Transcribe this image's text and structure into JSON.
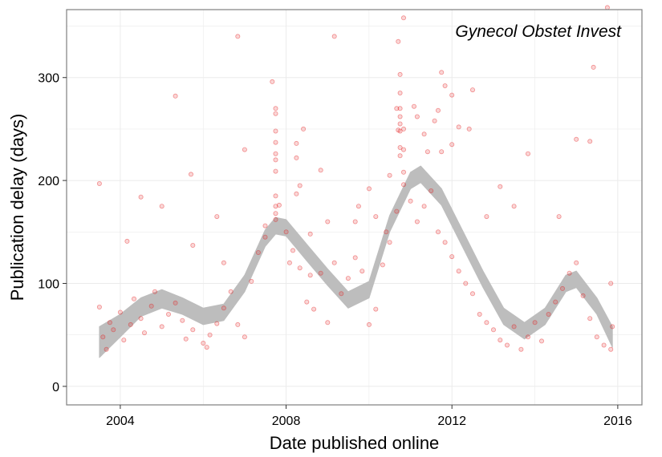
{
  "chart_data": {
    "type": "scatter",
    "title": "",
    "annotation": "Gynecol Obstet Invest",
    "xlabel": "Date published online",
    "ylabel": "Publication delay (days)",
    "x_type": "date",
    "xlim": [
      "2002-09-15",
      "2016-08-01"
    ],
    "ylim": [
      -18,
      366
    ],
    "x_ticks": [
      {
        "value": "2004-01-01",
        "label": "2004"
      },
      {
        "value": "2008-01-01",
        "label": "2008"
      },
      {
        "value": "2012-01-01",
        "label": "2012"
      },
      {
        "value": "2016-01-01",
        "label": "2016"
      }
    ],
    "y_ticks": [
      {
        "value": 0,
        "label": "0"
      },
      {
        "value": 100,
        "label": "100"
      },
      {
        "value": 200,
        "label": "200"
      },
      {
        "value": 300,
        "label": "300"
      }
    ],
    "grid": true,
    "colors": {
      "points": "#e41a1c",
      "smooth_band": "#bdbdbd",
      "grid": "#ebebeb",
      "panel_border": "#7f7f7f"
    },
    "points": [
      {
        "x": "2003-07-01",
        "y": 197
      },
      {
        "x": "2004-03-01",
        "y": 141
      },
      {
        "x": "2004-07-01",
        "y": 184
      },
      {
        "x": "2005-01-01",
        "y": 175
      },
      {
        "x": "2005-05-01",
        "y": 282
      },
      {
        "x": "2005-09-15",
        "y": 206
      },
      {
        "x": "2005-10-01",
        "y": 137
      },
      {
        "x": "2006-05-01",
        "y": 165
      },
      {
        "x": "2006-07-01",
        "y": 120
      },
      {
        "x": "2006-11-01",
        "y": 340
      },
      {
        "x": "2007-01-01",
        "y": 230
      },
      {
        "x": "2007-07-01",
        "y": 156
      },
      {
        "x": "2007-09-01",
        "y": 296
      },
      {
        "x": "2007-10-01",
        "y": 270
      },
      {
        "x": "2007-10-01",
        "y": 265
      },
      {
        "x": "2007-10-01",
        "y": 248
      },
      {
        "x": "2007-10-01",
        "y": 237
      },
      {
        "x": "2007-10-01",
        "y": 226
      },
      {
        "x": "2007-10-01",
        "y": 220
      },
      {
        "x": "2007-10-01",
        "y": 209
      },
      {
        "x": "2007-10-01",
        "y": 185
      },
      {
        "x": "2007-10-01",
        "y": 175
      },
      {
        "x": "2007-10-01",
        "y": 162
      },
      {
        "x": "2007-11-01",
        "y": 176
      },
      {
        "x": "2008-04-01",
        "y": 236
      },
      {
        "x": "2008-04-01",
        "y": 222
      },
      {
        "x": "2008-06-01",
        "y": 250
      },
      {
        "x": "2008-05-01",
        "y": 195
      },
      {
        "x": "2008-04-01",
        "y": 187
      },
      {
        "x": "2008-08-01",
        "y": 148
      },
      {
        "x": "2008-02-01",
        "y": 120
      },
      {
        "x": "2008-08-01",
        "y": 108
      },
      {
        "x": "2008-11-01",
        "y": 210
      },
      {
        "x": "2009-01-01",
        "y": 160
      },
      {
        "x": "2009-03-01",
        "y": 340
      },
      {
        "x": "2009-09-01",
        "y": 160
      },
      {
        "x": "2009-10-01",
        "y": 175
      },
      {
        "x": "2010-01-01",
        "y": 192
      },
      {
        "x": "2010-03-01",
        "y": 165
      },
      {
        "x": "2010-06-01",
        "y": 150
      },
      {
        "x": "2010-07-01",
        "y": 205
      },
      {
        "x": "2010-09-01",
        "y": 270
      },
      {
        "x": "2010-09-15",
        "y": 249
      },
      {
        "x": "2010-10-01",
        "y": 303
      },
      {
        "x": "2010-10-01",
        "y": 285
      },
      {
        "x": "2010-10-01",
        "y": 270
      },
      {
        "x": "2010-10-01",
        "y": 262
      },
      {
        "x": "2010-10-01",
        "y": 255
      },
      {
        "x": "2010-10-01",
        "y": 248
      },
      {
        "x": "2010-10-01",
        "y": 232
      },
      {
        "x": "2010-10-01",
        "y": 224
      },
      {
        "x": "2010-09-15",
        "y": 335
      },
      {
        "x": "2010-11-01",
        "y": 358
      },
      {
        "x": "2010-11-01",
        "y": 250
      },
      {
        "x": "2010-11-01",
        "y": 230
      },
      {
        "x": "2010-11-01",
        "y": 208
      },
      {
        "x": "2011-02-01",
        "y": 272
      },
      {
        "x": "2011-03-01",
        "y": 262
      },
      {
        "x": "2011-05-01",
        "y": 245
      },
      {
        "x": "2011-06-01",
        "y": 228
      },
      {
        "x": "2011-08-01",
        "y": 258
      },
      {
        "x": "2011-09-01",
        "y": 268
      },
      {
        "x": "2011-10-01",
        "y": 228
      },
      {
        "x": "2011-10-01",
        "y": 305
      },
      {
        "x": "2011-11-01",
        "y": 292
      },
      {
        "x": "2012-01-01",
        "y": 283
      },
      {
        "x": "2012-03-01",
        "y": 252
      },
      {
        "x": "2012-01-01",
        "y": 235
      },
      {
        "x": "2012-06-01",
        "y": 250
      },
      {
        "x": "2012-07-01",
        "y": 288
      },
      {
        "x": "2012-11-01",
        "y": 165
      },
      {
        "x": "2013-03-01",
        "y": 194
      },
      {
        "x": "2013-07-01",
        "y": 175
      },
      {
        "x": "2013-11-01",
        "y": 226
      },
      {
        "x": "2014-08-01",
        "y": 165
      },
      {
        "x": "2015-01-01",
        "y": 240
      },
      {
        "x": "2015-05-01",
        "y": 238
      },
      {
        "x": "2015-06-01",
        "y": 310
      },
      {
        "x": "2015-10-01",
        "y": 368
      },
      {
        "x": "2015-11-01",
        "y": 100
      }
    ],
    "cluster_points": [
      {
        "x": "2003-08-01",
        "y": 48
      },
      {
        "x": "2003-07-01",
        "y": 77
      },
      {
        "x": "2003-09-01",
        "y": 36
      },
      {
        "x": "2003-10-01",
        "y": 62
      },
      {
        "x": "2003-11-01",
        "y": 55
      },
      {
        "x": "2004-01-01",
        "y": 72
      },
      {
        "x": "2004-02-01",
        "y": 45
      },
      {
        "x": "2004-04-01",
        "y": 60
      },
      {
        "x": "2004-05-01",
        "y": 85
      },
      {
        "x": "2004-07-01",
        "y": 66
      },
      {
        "x": "2004-08-01",
        "y": 52
      },
      {
        "x": "2004-10-01",
        "y": 78
      },
      {
        "x": "2004-11-01",
        "y": 92
      },
      {
        "x": "2005-01-01",
        "y": 58
      },
      {
        "x": "2005-03-01",
        "y": 70
      },
      {
        "x": "2005-05-01",
        "y": 81
      },
      {
        "x": "2005-07-01",
        "y": 64
      },
      {
        "x": "2005-08-01",
        "y": 46
      },
      {
        "x": "2005-10-01",
        "y": 55
      },
      {
        "x": "2006-01-01",
        "y": 42
      },
      {
        "x": "2006-02-01",
        "y": 38
      },
      {
        "x": "2006-03-01",
        "y": 50
      },
      {
        "x": "2006-05-01",
        "y": 61
      },
      {
        "x": "2006-07-01",
        "y": 76
      },
      {
        "x": "2006-09-01",
        "y": 92
      },
      {
        "x": "2006-11-01",
        "y": 60
      },
      {
        "x": "2007-01-01",
        "y": 48
      },
      {
        "x": "2007-03-01",
        "y": 102
      },
      {
        "x": "2007-05-01",
        "y": 130
      },
      {
        "x": "2007-07-01",
        "y": 145
      },
      {
        "x": "2007-10-01",
        "y": 168
      },
      {
        "x": "2008-01-01",
        "y": 150
      },
      {
        "x": "2008-03-01",
        "y": 132
      },
      {
        "x": "2008-05-01",
        "y": 115
      },
      {
        "x": "2008-07-01",
        "y": 82
      },
      {
        "x": "2008-09-01",
        "y": 75
      },
      {
        "x": "2008-11-01",
        "y": 110
      },
      {
        "x": "2009-01-01",
        "y": 62
      },
      {
        "x": "2009-03-01",
        "y": 120
      },
      {
        "x": "2009-05-01",
        "y": 90
      },
      {
        "x": "2009-07-01",
        "y": 105
      },
      {
        "x": "2009-09-01",
        "y": 125
      },
      {
        "x": "2009-11-01",
        "y": 112
      },
      {
        "x": "2010-01-01",
        "y": 60
      },
      {
        "x": "2010-03-01",
        "y": 75
      },
      {
        "x": "2010-05-01",
        "y": 118
      },
      {
        "x": "2010-07-01",
        "y": 140
      },
      {
        "x": "2010-09-01",
        "y": 170
      },
      {
        "x": "2010-11-01",
        "y": 196
      },
      {
        "x": "2011-01-01",
        "y": 180
      },
      {
        "x": "2011-03-01",
        "y": 160
      },
      {
        "x": "2011-05-01",
        "y": 175
      },
      {
        "x": "2011-07-01",
        "y": 190
      },
      {
        "x": "2011-09-01",
        "y": 150
      },
      {
        "x": "2011-11-01",
        "y": 140
      },
      {
        "x": "2012-01-01",
        "y": 126
      },
      {
        "x": "2012-03-01",
        "y": 112
      },
      {
        "x": "2012-05-01",
        "y": 100
      },
      {
        "x": "2012-07-01",
        "y": 90
      },
      {
        "x": "2012-09-01",
        "y": 70
      },
      {
        "x": "2012-11-01",
        "y": 62
      },
      {
        "x": "2013-01-01",
        "y": 55
      },
      {
        "x": "2013-03-01",
        "y": 45
      },
      {
        "x": "2013-05-01",
        "y": 40
      },
      {
        "x": "2013-07-01",
        "y": 58
      },
      {
        "x": "2013-09-01",
        "y": 36
      },
      {
        "x": "2013-11-01",
        "y": 48
      },
      {
        "x": "2014-01-01",
        "y": 62
      },
      {
        "x": "2014-03-01",
        "y": 44
      },
      {
        "x": "2014-05-01",
        "y": 70
      },
      {
        "x": "2014-07-01",
        "y": 82
      },
      {
        "x": "2014-09-01",
        "y": 95
      },
      {
        "x": "2014-11-01",
        "y": 110
      },
      {
        "x": "2015-01-01",
        "y": 120
      },
      {
        "x": "2015-03-01",
        "y": 88
      },
      {
        "x": "2015-05-01",
        "y": 66
      },
      {
        "x": "2015-07-01",
        "y": 48
      },
      {
        "x": "2015-09-01",
        "y": 40
      },
      {
        "x": "2015-11-01",
        "y": 36
      },
      {
        "x": "2015-11-15",
        "y": 58
      }
    ],
    "smooth_band": [
      {
        "x": "2003-07-01",
        "lo": 28,
        "hi": 58
      },
      {
        "x": "2004-01-01",
        "lo": 48,
        "hi": 70
      },
      {
        "x": "2004-07-01",
        "lo": 68,
        "hi": 86
      },
      {
        "x": "2005-01-01",
        "lo": 76,
        "hi": 94
      },
      {
        "x": "2005-07-01",
        "lo": 70,
        "hi": 86
      },
      {
        "x": "2006-01-01",
        "lo": 60,
        "hi": 76
      },
      {
        "x": "2006-07-01",
        "lo": 64,
        "hi": 80
      },
      {
        "x": "2007-01-01",
        "lo": 92,
        "hi": 108
      },
      {
        "x": "2007-07-01",
        "lo": 136,
        "hi": 152
      },
      {
        "x": "2007-10-01",
        "lo": 148,
        "hi": 164
      },
      {
        "x": "2008-01-01",
        "lo": 146,
        "hi": 162
      },
      {
        "x": "2008-07-01",
        "lo": 122,
        "hi": 138
      },
      {
        "x": "2009-01-01",
        "lo": 98,
        "hi": 114
      },
      {
        "x": "2009-07-01",
        "lo": 76,
        "hi": 92
      },
      {
        "x": "2010-01-01",
        "lo": 86,
        "hi": 102
      },
      {
        "x": "2010-07-01",
        "lo": 150,
        "hi": 166
      },
      {
        "x": "2011-01-01",
        "lo": 192,
        "hi": 208
      },
      {
        "x": "2011-04-01",
        "lo": 198,
        "hi": 214
      },
      {
        "x": "2011-10-01",
        "lo": 176,
        "hi": 192
      },
      {
        "x": "2012-04-01",
        "lo": 136,
        "hi": 152
      },
      {
        "x": "2012-10-01",
        "lo": 96,
        "hi": 112
      },
      {
        "x": "2013-04-01",
        "lo": 60,
        "hi": 76
      },
      {
        "x": "2013-10-01",
        "lo": 46,
        "hi": 62
      },
      {
        "x": "2014-04-01",
        "lo": 60,
        "hi": 76
      },
      {
        "x": "2014-10-01",
        "lo": 92,
        "hi": 108
      },
      {
        "x": "2015-01-01",
        "lo": 96,
        "hi": 112
      },
      {
        "x": "2015-07-01",
        "lo": 70,
        "hi": 86
      },
      {
        "x": "2015-11-15",
        "lo": 38,
        "hi": 58
      }
    ]
  }
}
